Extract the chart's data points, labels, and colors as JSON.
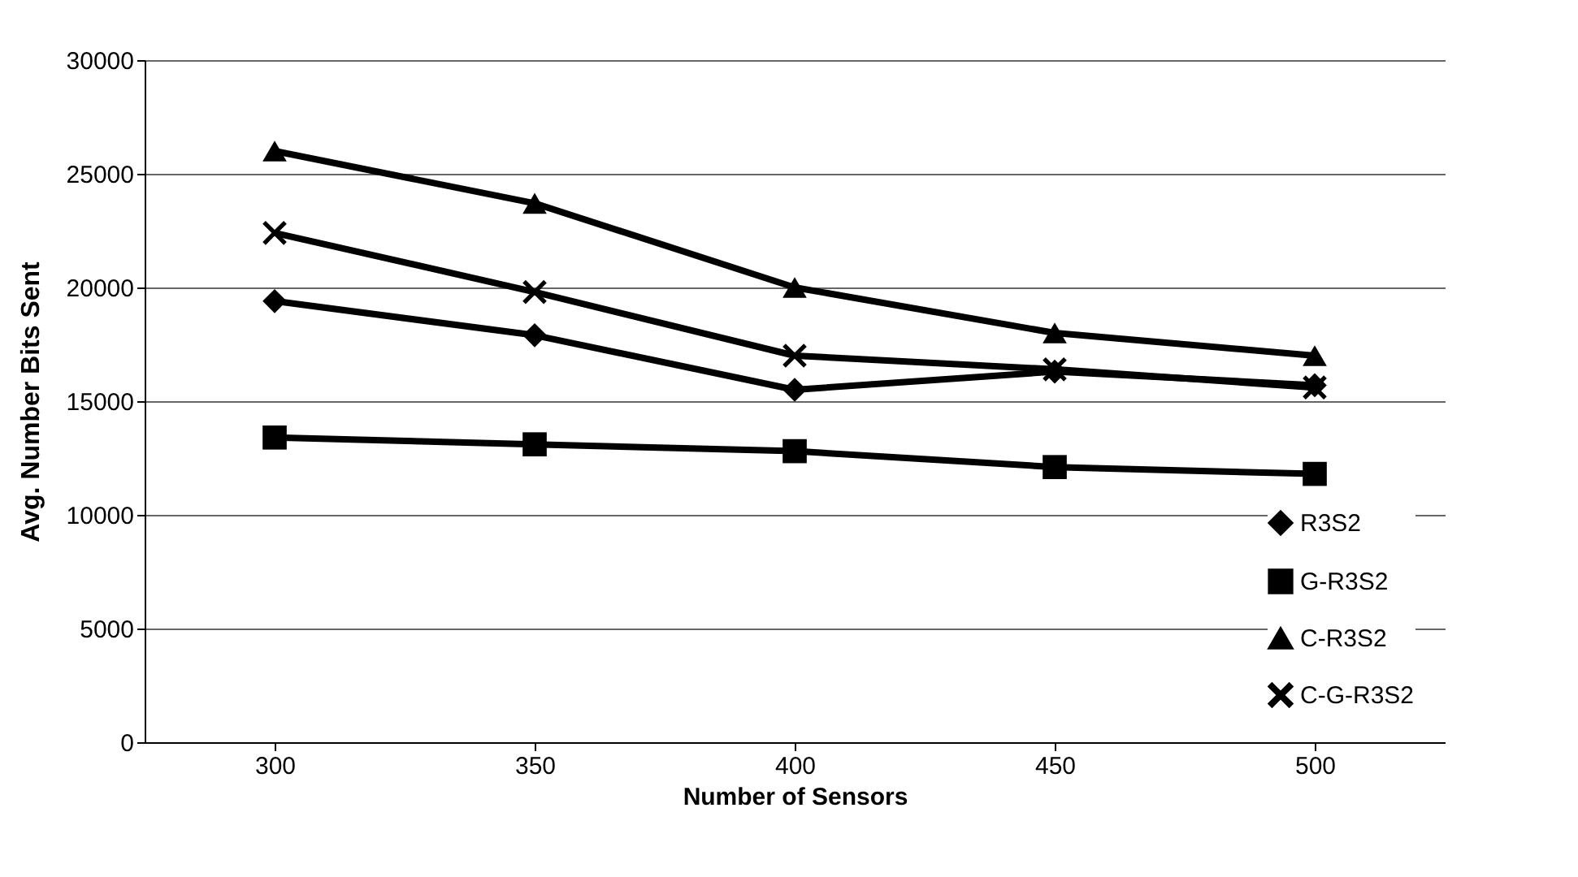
{
  "chart_data": {
    "type": "line",
    "xlabel": "Number of Sensors",
    "ylabel": "Avg. Number Bits Sent",
    "categories": [
      "300",
      "350",
      "400",
      "450",
      "500"
    ],
    "ylim": [
      0,
      30000
    ],
    "yticks": [
      0,
      5000,
      10000,
      15000,
      20000,
      25000,
      30000
    ],
    "grid": "y",
    "legend": "bottom right",
    "line_style": "solid",
    "series": [
      {
        "name": "R3S2",
        "color": "#000000",
        "marker": "diamond",
        "values": [
          19400,
          17900,
          15500,
          16300,
          15700
        ]
      },
      {
        "name": "G-R3S2",
        "color": "#000000",
        "marker": "square",
        "values": [
          13400,
          13100,
          12800,
          12100,
          11800
        ]
      },
      {
        "name": "C-R3S2",
        "color": "#000000",
        "marker": "triangle",
        "values": [
          26000,
          23700,
          20000,
          18000,
          17000
        ]
      },
      {
        "name": "C-G-R3S2",
        "color": "#000000",
        "marker": "cross",
        "values": [
          22400,
          19800,
          17000,
          16400,
          15600
        ]
      }
    ]
  }
}
